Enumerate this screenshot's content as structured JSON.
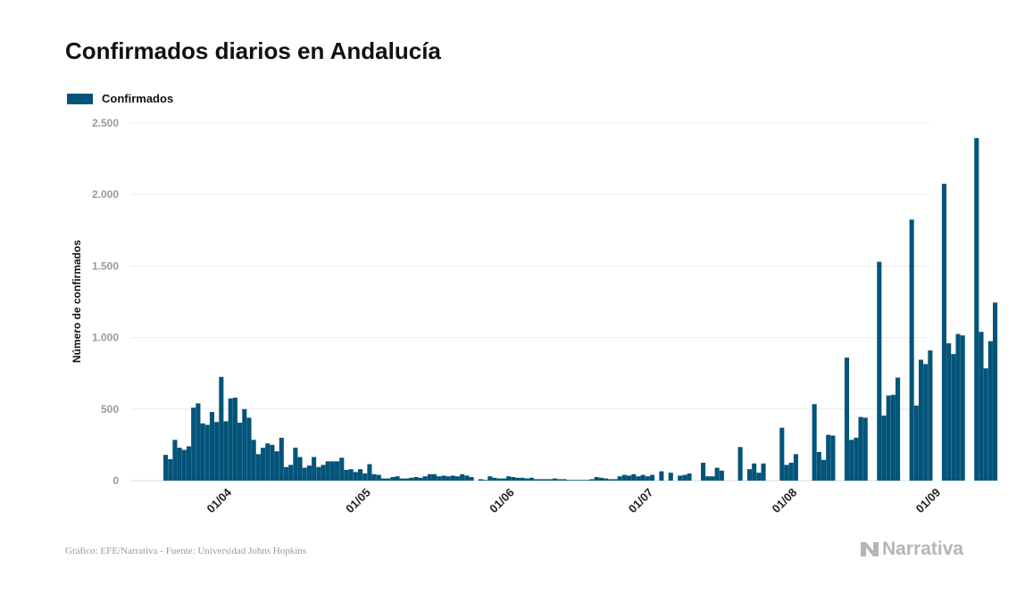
{
  "page": {
    "title": "Confirmados diarios en Andalucía",
    "source": "Gráfico: EFE/Narrativa - Fuente: Universidad Johns Hopkins",
    "brand": "Narrativa",
    "brand_icon": "narrativa-logo-icon"
  },
  "colors": {
    "bar": "#04547a",
    "grid": "#ececec",
    "tick_text": "#9a9a9a",
    "axis_title": "#111111"
  },
  "chart_data": {
    "type": "bar",
    "title": "Confirmados diarios en Andalucía",
    "xlabel": "",
    "ylabel": "Número de confirmados",
    "ylim": [
      0,
      2500
    ],
    "yticks": [
      0,
      500,
      1000,
      1500,
      2000,
      2500
    ],
    "ytick_labels": [
      "0",
      "500",
      "1.000",
      "1.500",
      "2.000",
      "2.500"
    ],
    "grid": true,
    "legend_position": "top-left",
    "series": [
      {
        "name": "Confirmados"
      }
    ],
    "x_day_start": 78,
    "x_ticks": [
      {
        "label": "01/04",
        "day": 91
      },
      {
        "label": "01/05",
        "day": 121
      },
      {
        "label": "01/06",
        "day": 152
      },
      {
        "label": "01/07",
        "day": 182
      },
      {
        "label": "01/08",
        "day": 213
      },
      {
        "label": "01/09",
        "day": 244
      }
    ],
    "values": [
      180,
      150,
      285,
      230,
      215,
      240,
      510,
      540,
      400,
      390,
      480,
      410,
      725,
      415,
      575,
      580,
      405,
      500,
      440,
      285,
      185,
      230,
      260,
      250,
      205,
      300,
      95,
      110,
      230,
      165,
      90,
      105,
      165,
      95,
      110,
      135,
      135,
      135,
      160,
      75,
      80,
      60,
      80,
      50,
      115,
      45,
      40,
      15,
      15,
      25,
      30,
      15,
      15,
      20,
      25,
      20,
      30,
      45,
      45,
      30,
      35,
      30,
      35,
      30,
      45,
      35,
      25,
      0,
      10,
      5,
      30,
      20,
      15,
      15,
      30,
      25,
      20,
      20,
      15,
      20,
      10,
      10,
      10,
      10,
      15,
      10,
      10,
      5,
      5,
      5,
      5,
      5,
      10,
      25,
      20,
      15,
      10,
      10,
      30,
      40,
      35,
      45,
      30,
      40,
      30,
      40,
      0,
      65,
      0,
      55,
      0,
      35,
      40,
      50,
      0,
      0,
      125,
      30,
      30,
      90,
      70,
      0,
      0,
      0,
      235,
      0,
      80,
      120,
      55,
      120,
      0,
      0,
      0,
      370,
      110,
      125,
      185,
      0,
      0,
      0,
      535,
      200,
      145,
      320,
      315,
      0,
      0,
      860,
      285,
      300,
      445,
      440,
      0,
      0,
      1530,
      455,
      595,
      600,
      720,
      0,
      0,
      1825,
      525,
      845,
      815,
      910,
      0,
      0,
      2075,
      960,
      885,
      1025,
      1015,
      0,
      0,
      2395,
      1040,
      785,
      975,
      1245
    ]
  }
}
